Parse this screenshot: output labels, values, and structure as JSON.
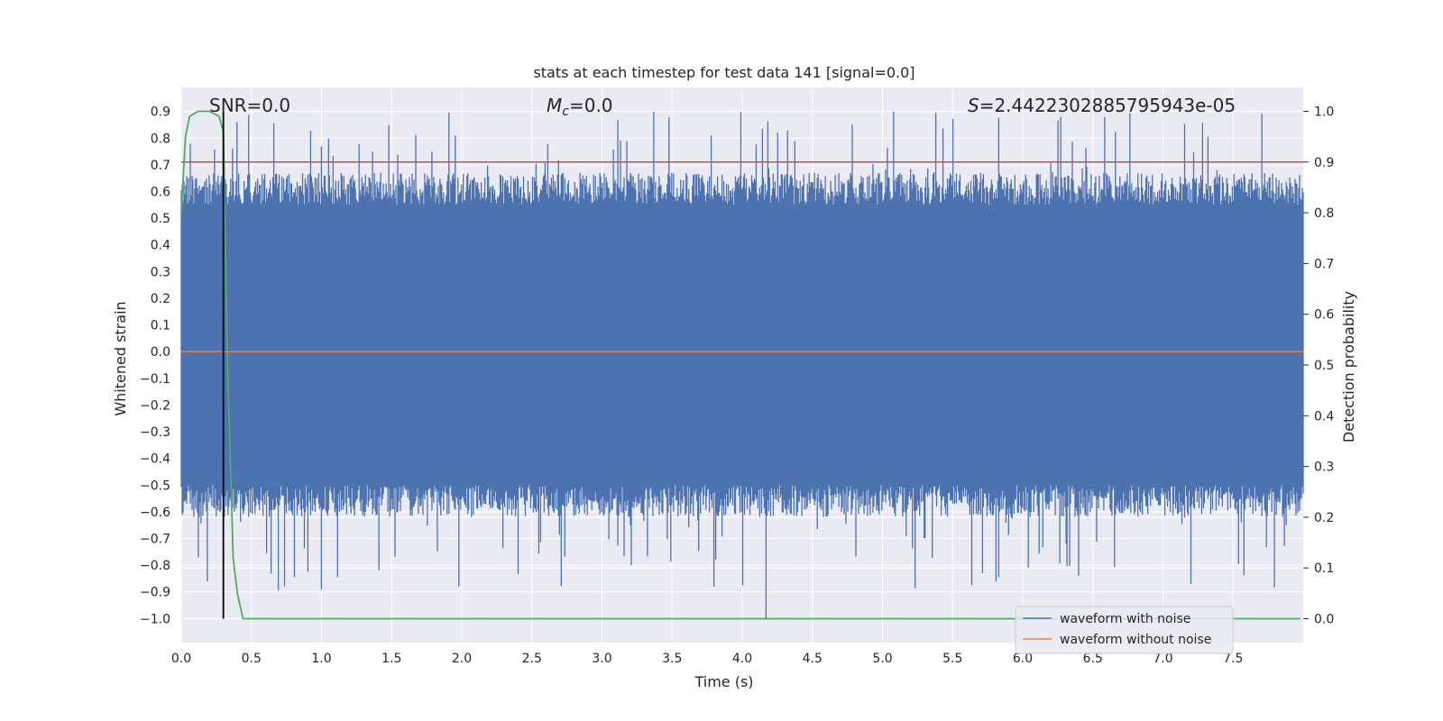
{
  "chart_data": {
    "type": "line",
    "title": "stats at each timestep for test data 141 [signal=0.0]",
    "xlabel": "Time (s)",
    "ylabel": "Whitened strain",
    "y2label": "Detection probability",
    "xlim": [
      0.0,
      8.0
    ],
    "ylim": [
      -1.09,
      0.99
    ],
    "y2lim": [
      -0.047,
      1.047
    ],
    "x_ticks": [
      "0.0",
      "0.5",
      "1.0",
      "1.5",
      "2.0",
      "2.5",
      "3.0",
      "3.5",
      "4.0",
      "4.5",
      "5.0",
      "5.5",
      "6.0",
      "6.5",
      "7.0",
      "7.5"
    ],
    "y_ticks": [
      "0.9",
      "0.8",
      "0.7",
      "0.6",
      "0.5",
      "0.4",
      "0.3",
      "0.2",
      "0.1",
      "0.0",
      "−0.1",
      "−0.2",
      "−0.3",
      "−0.4",
      "−0.5",
      "−0.6",
      "−0.7",
      "−0.8",
      "−0.9",
      "−1.0"
    ],
    "y2_ticks": [
      "1.0",
      "0.9",
      "0.8",
      "0.7",
      "0.6",
      "0.5",
      "0.4",
      "0.3",
      "0.2",
      "0.1",
      "0.0"
    ],
    "grid": true,
    "legend_position": "lower-right",
    "annotations": {
      "snr": "SNR=0.0",
      "mc_symbol": "M",
      "mc_sub": "c",
      "mc_value": "=0.0",
      "s_symbol": "S",
      "s_value": "=2.4422302885795943e-05"
    },
    "series": [
      {
        "name": "waveform with noise",
        "color": "#4c72b0",
        "description": "dense whitened noise, approx uniform in [-1.0, 0.9]; peaks near 0.9 and a min of -1.0 at t=4.17",
        "x_range": [
          0.0,
          8.0
        ],
        "y_envelope": [
          -1.0,
          0.9
        ],
        "y_typical": [
          -0.5,
          0.55
        ]
      },
      {
        "name": "waveform without noise",
        "color": "#dd8452",
        "x": [
          0.0,
          8.0
        ],
        "y": [
          0.0,
          0.0
        ]
      }
    ],
    "detection_probability": {
      "color": "#55a868",
      "axis": "right",
      "x": [
        0.0,
        0.03,
        0.06,
        0.12,
        0.2,
        0.27,
        0.3,
        0.33,
        0.37,
        0.4,
        0.44,
        0.5,
        7.98
      ],
      "y": [
        0.8,
        0.95,
        0.99,
        1.0,
        1.0,
        0.99,
        0.96,
        0.5,
        0.12,
        0.05,
        0.0,
        0.0,
        0.0
      ]
    },
    "threshold_line": {
      "color": "#c44e52",
      "axis": "right",
      "y": 0.9
    },
    "marker_line": {
      "color": "#000000",
      "x": 0.3,
      "axis": "right",
      "y_range": [
        0.0,
        1.0
      ]
    }
  }
}
